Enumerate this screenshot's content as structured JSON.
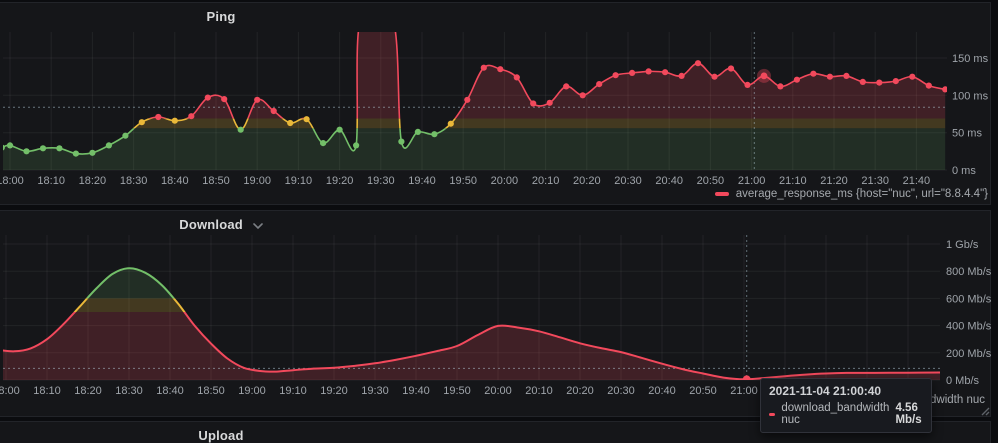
{
  "page": {
    "bg": "#0b0c0f",
    "panel_bg": "#151619",
    "panel_border": "#222429"
  },
  "colors": {
    "green": "#73bf69",
    "yellow": "#eab839",
    "red": "#f2495c",
    "axis_text": "#9fa4aa",
    "grid": "rgba(255,255,255,0.06)",
    "crosshair": "rgba(175,200,212,0.5)"
  },
  "panels": {
    "ping": {
      "title": "Ping",
      "legend": "average_response_ms {host=\"nuc\", url=\"8.8.4.4\"}"
    },
    "download": {
      "title": "Download",
      "has_collapse_chevron": true,
      "legend": "download_bandwidth nuc"
    },
    "upload": {
      "title": "Upload"
    }
  },
  "tooltip": {
    "timestamp": "2021-11-04 21:00:40",
    "series": "download_bandwidth nuc",
    "value": "4.56 Mb/s",
    "marker_color": "#f2495c"
  },
  "chart_data": [
    {
      "id": "ping",
      "type": "line",
      "title": "Ping",
      "unit": "ms",
      "ylim": [
        0,
        185
      ],
      "grid": true,
      "smooth": true,
      "show_points": true,
      "legend_position": "bottom-right",
      "x_ticks": [
        "18:00",
        "18:10",
        "18:20",
        "18:30",
        "18:40",
        "18:50",
        "19:00",
        "19:10",
        "19:20",
        "19:30",
        "19:40",
        "19:50",
        "20:00",
        "20:10",
        "20:20",
        "20:30",
        "20:40",
        "20:50",
        "21:00",
        "21:10",
        "21:20",
        "21:30",
        "21:40"
      ],
      "y_ticks": [
        {
          "v": 150,
          "label": "150 ms"
        },
        {
          "v": 100,
          "label": "100 ms"
        },
        {
          "v": 50,
          "label": "50 ms"
        },
        {
          "v": 0,
          "label": "0 ms"
        }
      ],
      "zones": [
        {
          "min": 0,
          "max": 56,
          "color": "#73bf69",
          "fill": "rgba(115,191,105,0.15)"
        },
        {
          "min": 56,
          "max": 69,
          "color": "#eab839",
          "fill": "rgba(234,184,57,0.22)"
        },
        {
          "min": 69,
          "max": 10000,
          "color": "#f2495c",
          "fill": "rgba(242,73,92,0.20)"
        }
      ],
      "threshold_line": 84,
      "crosshair_time": "21:00:40",
      "highlight_time": "21:03",
      "series": [
        {
          "name": "average_response_ms {host=\"nuc\", url=\"8.8.4.4\"}",
          "points": [
            [
              "17:58",
              30
            ],
            [
              "18:00",
              33
            ],
            [
              "18:04",
              25
            ],
            [
              "18:08",
              29
            ],
            [
              "18:12",
              29
            ],
            [
              "18:16",
              22
            ],
            [
              "18:20",
              23
            ],
            [
              "18:24",
              33
            ],
            [
              "18:28",
              46
            ],
            [
              "18:32",
              64
            ],
            [
              "18:36",
              71
            ],
            [
              "18:40",
              66
            ],
            [
              "18:44",
              72
            ],
            [
              "18:48",
              97
            ],
            [
              "18:52",
              95
            ],
            [
              "18:56",
              54
            ],
            [
              "19:00",
              94
            ],
            [
              "19:04",
              79
            ],
            [
              "19:08",
              63
            ],
            [
              "19:12",
              68
            ],
            [
              "19:16",
              36
            ],
            [
              "19:20",
              54
            ],
            [
              "19:24",
              33
            ],
            [
              "19:25",
              200
            ],
            [
              "19:33",
              200
            ],
            [
              "19:35",
              38
            ],
            [
              "19:39",
              51
            ],
            [
              "19:43",
              48
            ],
            [
              "19:47",
              62
            ],
            [
              "19:51",
              94
            ],
            [
              "19:55",
              137
            ],
            [
              "19:59",
              135
            ],
            [
              "20:03",
              124
            ],
            [
              "20:07",
              89
            ],
            [
              "20:11",
              90
            ],
            [
              "20:15",
              112
            ],
            [
              "20:19",
              100
            ],
            [
              "20:23",
              115
            ],
            [
              "20:27",
              127
            ],
            [
              "20:31",
              130
            ],
            [
              "20:35",
              132
            ],
            [
              "20:39",
              131
            ],
            [
              "20:43",
              126
            ],
            [
              "20:47",
              143
            ],
            [
              "20:51",
              125
            ],
            [
              "20:55",
              136
            ],
            [
              "20:59",
              114
            ],
            [
              "21:03",
              126
            ],
            [
              "21:07",
              112
            ],
            [
              "21:11",
              121
            ],
            [
              "21:15",
              129
            ],
            [
              "21:19",
              125
            ],
            [
              "21:23",
              126
            ],
            [
              "21:27",
              118
            ],
            [
              "21:31",
              117
            ],
            [
              "21:35",
              119
            ],
            [
              "21:39",
              125
            ],
            [
              "21:43",
              113
            ],
            [
              "21:47",
              108
            ]
          ]
        }
      ]
    },
    {
      "id": "download",
      "type": "area",
      "title": "Download",
      "unit": "Mb/s",
      "ylim": [
        0,
        1065
      ],
      "grid": true,
      "smooth": true,
      "show_points": false,
      "legend_position": "bottom-right",
      "x_ticks": [
        "18:00",
        "18:10",
        "18:20",
        "18:30",
        "18:40",
        "18:50",
        "19:00",
        "19:10",
        "19:20",
        "19:30",
        "19:40",
        "19:50",
        "20:00",
        "20:10",
        "20:20",
        "20:30",
        "20:40",
        "20:50",
        "21:00",
        "21:10",
        "21:20",
        "21:30",
        "21:40"
      ],
      "y_ticks": [
        {
          "v": 1000,
          "label": "1 Gb/s"
        },
        {
          "v": 800,
          "label": "800 Mb/s"
        },
        {
          "v": 600,
          "label": "600 Mb/s"
        },
        {
          "v": 400,
          "label": "400 Mb/s"
        },
        {
          "v": 200,
          "label": "200 Mb/s"
        },
        {
          "v": 0,
          "label": "0 Mb/s"
        }
      ],
      "zones": [
        {
          "min": 0,
          "max": 500,
          "color": "#f2495c",
          "fill": "rgba(242,73,92,0.20)"
        },
        {
          "min": 500,
          "max": 600,
          "color": "#eab839",
          "fill": "rgba(234,184,57,0.22)"
        },
        {
          "min": 600,
          "max": 10000,
          "color": "#73bf69",
          "fill": "rgba(115,191,105,0.15)"
        }
      ],
      "threshold_line": 85,
      "crosshair_time": "21:00:40",
      "point_marker": {
        "time": "21:00:40",
        "value": 4.56
      },
      "series": [
        {
          "name": "download_bandwidth nuc",
          "points": [
            [
              "17:58",
              222
            ],
            [
              "18:02",
              211
            ],
            [
              "18:06",
              232
            ],
            [
              "18:10",
              300
            ],
            [
              "18:14",
              410
            ],
            [
              "18:18",
              540
            ],
            [
              "18:22",
              672
            ],
            [
              "18:26",
              780
            ],
            [
              "18:30",
              822
            ],
            [
              "18:34",
              788
            ],
            [
              "18:38",
              698
            ],
            [
              "18:42",
              560
            ],
            [
              "18:46",
              400
            ],
            [
              "18:50",
              268
            ],
            [
              "18:54",
              158
            ],
            [
              "18:58",
              90
            ],
            [
              "19:02",
              66
            ],
            [
              "19:06",
              62
            ],
            [
              "19:10",
              72
            ],
            [
              "19:15",
              84
            ],
            [
              "19:20",
              90
            ],
            [
              "19:25",
              104
            ],
            [
              "19:30",
              123
            ],
            [
              "19:35",
              148
            ],
            [
              "19:40",
              178
            ],
            [
              "19:45",
              212
            ],
            [
              "19:50",
              250
            ],
            [
              "19:55",
              330
            ],
            [
              "20:00",
              398
            ],
            [
              "20:05",
              385
            ],
            [
              "20:10",
              358
            ],
            [
              "20:15",
              315
            ],
            [
              "20:20",
              270
            ],
            [
              "20:25",
              235
            ],
            [
              "20:30",
              205
            ],
            [
              "20:35",
              163
            ],
            [
              "20:40",
              120
            ],
            [
              "20:45",
              80
            ],
            [
              "20:50",
              48
            ],
            [
              "20:55",
              18
            ],
            [
              "21:00",
              5
            ],
            [
              "21:05",
              15
            ],
            [
              "21:10",
              28
            ],
            [
              "21:15",
              40
            ],
            [
              "21:20",
              48
            ],
            [
              "21:25",
              52
            ],
            [
              "21:32",
              52
            ],
            [
              "21:40",
              54
            ],
            [
              "21:48",
              55
            ]
          ]
        }
      ]
    }
  ]
}
